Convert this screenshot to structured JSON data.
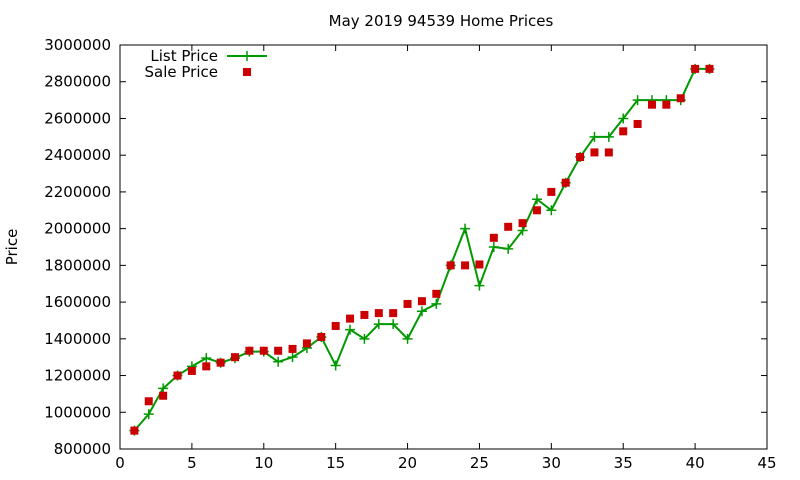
{
  "chart_data": {
    "type": "line",
    "title": "May 2019 94539 Home Prices",
    "xlabel": "",
    "ylabel": "Price",
    "xlim": [
      0,
      45
    ],
    "ylim": [
      800000,
      3000000
    ],
    "x_ticks": [
      0,
      5,
      10,
      15,
      20,
      25,
      30,
      35,
      40,
      45
    ],
    "y_ticks": [
      800000,
      1000000,
      1200000,
      1400000,
      1600000,
      1800000,
      2000000,
      2200000,
      2400000,
      2600000,
      2800000,
      3000000
    ],
    "grid": false,
    "legend_position": "top-left",
    "series": [
      {
        "name": "List Price",
        "style": "line-plus",
        "color": "#009900",
        "x": [
          1,
          2,
          3,
          4,
          5,
          6,
          7,
          8,
          9,
          10,
          11,
          12,
          13,
          14,
          15,
          16,
          17,
          18,
          19,
          20,
          21,
          22,
          23,
          24,
          25,
          26,
          27,
          28,
          29,
          30,
          31,
          32,
          33,
          34,
          35,
          36,
          37,
          38,
          39,
          40,
          41
        ],
        "y": [
          900000,
          990000,
          1130000,
          1200000,
          1250000,
          1295000,
          1270000,
          1295000,
          1330000,
          1330000,
          1275000,
          1300000,
          1350000,
          1410000,
          1255000,
          1450000,
          1400000,
          1480000,
          1480000,
          1400000,
          1550000,
          1590000,
          1800000,
          2000000,
          1690000,
          1900000,
          1890000,
          1990000,
          2160000,
          2100000,
          2250000,
          2390000,
          2500000,
          2500000,
          2600000,
          2700000,
          2700000,
          2700000,
          2700000,
          2870000,
          2870000
        ]
      },
      {
        "name": "Sale Price",
        "style": "square",
        "color": "#cc0000",
        "x": [
          1,
          2,
          3,
          4,
          5,
          6,
          7,
          8,
          9,
          10,
          11,
          12,
          13,
          14,
          15,
          16,
          17,
          18,
          19,
          20,
          21,
          22,
          23,
          24,
          25,
          26,
          27,
          28,
          29,
          30,
          31,
          32,
          33,
          34,
          35,
          36,
          37,
          38,
          39,
          40,
          41
        ],
        "y": [
          900000,
          1060000,
          1090000,
          1200000,
          1225000,
          1250000,
          1270000,
          1300000,
          1335000,
          1335000,
          1335000,
          1345000,
          1375000,
          1410000,
          1470000,
          1510000,
          1530000,
          1540000,
          1540000,
          1590000,
          1605000,
          1645000,
          1800000,
          1800000,
          1805000,
          1950000,
          2010000,
          2030000,
          2100000,
          2200000,
          2250000,
          2390000,
          2415000,
          2415000,
          2530000,
          2570000,
          2675000,
          2675000,
          2710000,
          2870000,
          2870000
        ]
      }
    ]
  }
}
